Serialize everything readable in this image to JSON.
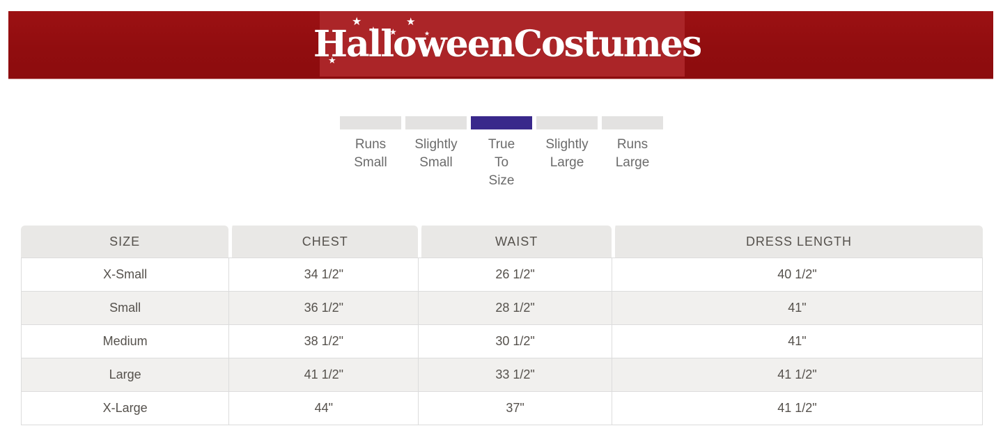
{
  "header": {
    "logo_text": "HalloweenCostumes",
    "star_glyph": "★",
    "banner_color": "#910d0f",
    "logo_box_color": "#ab2528"
  },
  "fit_scale": {
    "selected_label": "True To Size",
    "selected_index": 2,
    "bar_color_default": "#e3e2e1",
    "bar_color_selected": "#39288b",
    "options": [
      {
        "id": "runs-small",
        "label_lines": [
          "Runs",
          "Small"
        ],
        "selected": false
      },
      {
        "id": "slightly-small",
        "label_lines": [
          "Slightly",
          "Small"
        ],
        "selected": false
      },
      {
        "id": "true-to-size",
        "label_lines": [
          "True",
          "To",
          "Size"
        ],
        "selected": true
      },
      {
        "id": "slightly-large",
        "label_lines": [
          "Slightly",
          "Large"
        ],
        "selected": false
      },
      {
        "id": "runs-large",
        "label_lines": [
          "Runs",
          "Large"
        ],
        "selected": false
      }
    ]
  },
  "size_chart": {
    "columns": [
      "SIZE",
      "CHEST",
      "WAIST",
      "DRESS LENGTH"
    ],
    "column_widths": [
      "21.6%",
      "19.7%",
      "20.1%",
      "38.6%"
    ],
    "rows": [
      {
        "size": "X-Small",
        "chest": "34 1/2\"",
        "waist": "26 1/2\"",
        "dress_length": "40 1/2\""
      },
      {
        "size": "Small",
        "chest": "36 1/2\"",
        "waist": "28 1/2\"",
        "dress_length": "41\""
      },
      {
        "size": "Medium",
        "chest": "38 1/2\"",
        "waist": "30 1/2\"",
        "dress_length": "41\""
      },
      {
        "size": "Large",
        "chest": "41 1/2\"",
        "waist": "33 1/2\"",
        "dress_length": "41 1/2\""
      },
      {
        "size": "X-Large",
        "chest": "44\"",
        "waist": "37\"",
        "dress_length": "41 1/2\""
      }
    ]
  }
}
